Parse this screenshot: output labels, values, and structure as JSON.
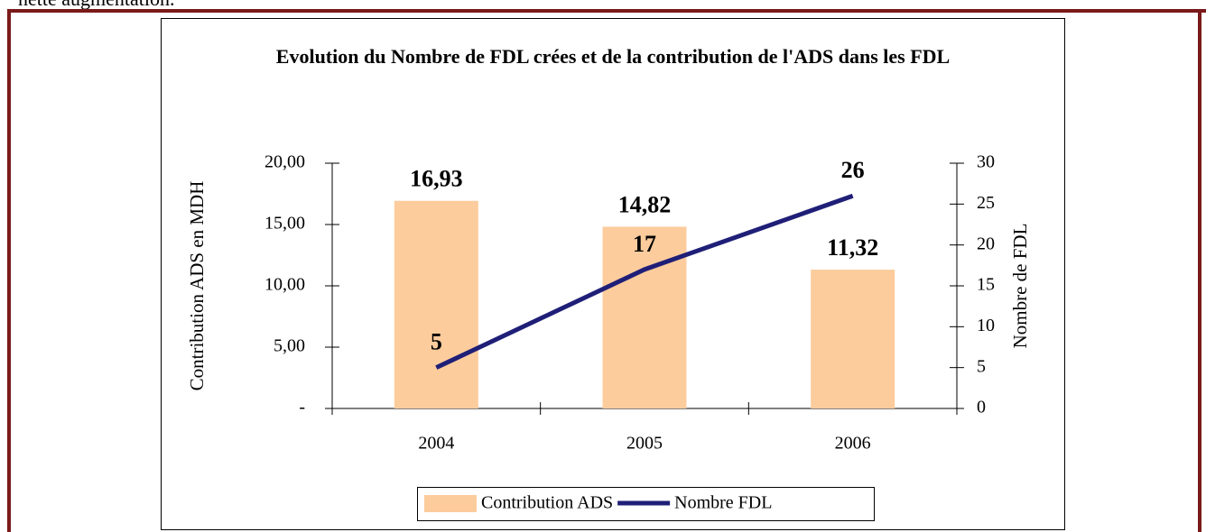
{
  "document": {
    "text": "nette augmentation."
  },
  "chart_data": {
    "type": "bar-line",
    "title": "Evolution du Nombre de FDL crées et de la contribution de l'ADS dans les FDL",
    "y_label": "Contribution ADS en MDH",
    "y2_label": "Nombre de FDL",
    "categories": [
      "2004",
      "2005",
      "2006"
    ],
    "series": [
      {
        "name": "Contribution ADS",
        "type": "bar",
        "color": "#fccc9c",
        "values": [
          16.93,
          14.82,
          11.32
        ],
        "value_labels": [
          "16,93",
          "14,82",
          "11,32"
        ]
      },
      {
        "name": "Nombre FDL",
        "type": "line",
        "axis": "y2",
        "color": "#1f1f78",
        "values": [
          5,
          17,
          26
        ]
      }
    ],
    "ylim": [
      0,
      20
    ],
    "yticks": [
      {
        "value": 0,
        "label": "-"
      },
      {
        "value": 5,
        "label": "5,00"
      },
      {
        "value": 10,
        "label": "10,00"
      },
      {
        "value": 15,
        "label": "15,00"
      },
      {
        "value": 20,
        "label": "20,00"
      }
    ],
    "y2lim": [
      0,
      30
    ],
    "y2ticks": [
      0,
      5,
      10,
      15,
      20,
      25,
      30
    ],
    "legend": "bottom"
  }
}
